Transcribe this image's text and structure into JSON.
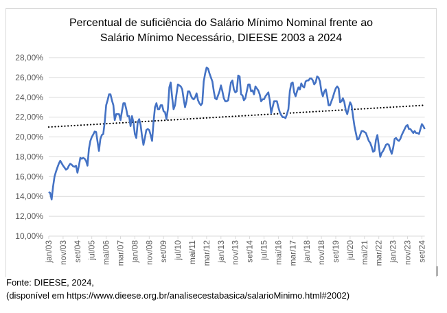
{
  "chart_data": {
    "type": "line",
    "title": [
      "Percentual de suficiência do Salário Mínimo Nominal frente ao",
      "Salário Mínimo Necessário, DIEESE 2003 a 2024"
    ],
    "xlabel": "",
    "ylabel": "",
    "x_start": "jan/03",
    "x_end": "nov/24",
    "x_frequency": "monthly",
    "x_tick_labels": [
      "jan/03",
      "nov/03",
      "set/04",
      "jul/05",
      "mai/06",
      "mar/07",
      "jan/08",
      "nov/08",
      "set/09",
      "jul/10",
      "mai/11",
      "mar/12",
      "jan/13",
      "nov/13",
      "set/14",
      "jul/15",
      "mai/16",
      "mar/17",
      "jan/18",
      "nov/18",
      "set/19",
      "jul/20",
      "mai/21",
      "mar/22",
      "jan/23",
      "nov/23",
      "set/24"
    ],
    "y_tick_labels": [
      "10,00%",
      "12,00%",
      "14,00%",
      "16,00%",
      "18,00%",
      "20,00%",
      "22,00%",
      "24,00%",
      "26,00%",
      "28,00%"
    ],
    "ylim": [
      10,
      28
    ],
    "y_unit": "%",
    "grid": "horizontal",
    "legend": "none",
    "series": [
      {
        "color": "#4472C4",
        "values": [
          14.45,
          14.35,
          13.7,
          15.0,
          16.0,
          16.5,
          16.9,
          17.3,
          17.6,
          17.35,
          17.1,
          16.9,
          16.7,
          16.8,
          17.1,
          17.3,
          17.2,
          17.05,
          17.0,
          17.1,
          16.4,
          17.1,
          17.9,
          17.8,
          17.9,
          17.8,
          17.6,
          17.1,
          18.8,
          19.6,
          20.0,
          20.25,
          20.55,
          20.5,
          19.5,
          18.6,
          19.8,
          20.2,
          20.3,
          21.5,
          23.2,
          23.7,
          24.3,
          24.3,
          23.7,
          23.2,
          21.7,
          22.3,
          22.3,
          22.3,
          21.7,
          22.6,
          23.4,
          23.4,
          22.8,
          22.1,
          22.1,
          21.1,
          22.1,
          21.5,
          20.3,
          19.9,
          21.5,
          21.8,
          21.2,
          20.1,
          19.2,
          19.9,
          20.7,
          20.8,
          20.7,
          20.2,
          19.6,
          21.5,
          23.0,
          23.4,
          22.8,
          22.8,
          23.2,
          23.2,
          22.6,
          22.5,
          21.8,
          22.8,
          25.0,
          25.5,
          24.0,
          22.8,
          23.2,
          24.3,
          25.3,
          25.2,
          25.1,
          24.8,
          23.8,
          23.0,
          23.6,
          24.6,
          24.6,
          24.2,
          23.9,
          23.8,
          24.0,
          24.4,
          23.7,
          23.4,
          23.2,
          23.4,
          25.6,
          26.4,
          27.0,
          26.9,
          26.4,
          26.0,
          25.6,
          24.6,
          23.9,
          23.8,
          24.2,
          24.6,
          25.2,
          24.6,
          23.9,
          23.6,
          23.6,
          23.7,
          24.6,
          25.5,
          25.7,
          24.8,
          24.5,
          24.6,
          26.2,
          26.1,
          24.3,
          24.2,
          23.7,
          23.9,
          24.6,
          25.3,
          25.3,
          24.6,
          24.7,
          24.3,
          25.1,
          24.9,
          24.7,
          24.3,
          23.6,
          23.8,
          23.8,
          24.1,
          24.3,
          24.5,
          23.7,
          22.4,
          23.0,
          23.6,
          23.6,
          23.6,
          23.0,
          22.5,
          22.2,
          22.0,
          22.0,
          21.9,
          22.3,
          22.8,
          24.6,
          25.4,
          25.5,
          24.5,
          24.1,
          24.6,
          25.0,
          24.8,
          25.4,
          25.1,
          25.0,
          25.6,
          25.7,
          25.7,
          25.9,
          25.9,
          25.7,
          25.3,
          25.5,
          26.1,
          26.0,
          25.6,
          24.6,
          24.1,
          24.6,
          24.8,
          24.1,
          23.2,
          23.2,
          23.6,
          24.0,
          24.5,
          24.9,
          25.1,
          24.9,
          23.5,
          23.6,
          23.9,
          23.5,
          22.7,
          22.3,
          22.9,
          23.5,
          23.2,
          22.1,
          21.1,
          20.4,
          19.75,
          19.8,
          20.2,
          20.6,
          20.6,
          20.5,
          20.4,
          20.0,
          19.6,
          19.4,
          19.0,
          18.5,
          18.6,
          19.7,
          20.2,
          19.1,
          18.0,
          18.4,
          18.6,
          18.9,
          19.2,
          19.3,
          19.2,
          18.7,
          18.3,
          18.9,
          19.8,
          19.9,
          19.7,
          19.6,
          19.8,
          20.2,
          20.5,
          20.8,
          21.1,
          21.2,
          20.8,
          20.8,
          20.6,
          20.4,
          20.6,
          20.4,
          20.4,
          20.3,
          20.8,
          21.3,
          21.1,
          20.8
        ]
      }
    ],
    "trendline": {
      "type": "linear",
      "style": "dotted",
      "color": "#000000",
      "start_value": 21.0,
      "end_value": 23.2
    }
  },
  "source": {
    "line1": "Fonte: DIEESE, 2024,",
    "line2": "(disponível em https://www.dieese.org.br/analisecestabasica/salarioMinimo.html#2002)"
  }
}
